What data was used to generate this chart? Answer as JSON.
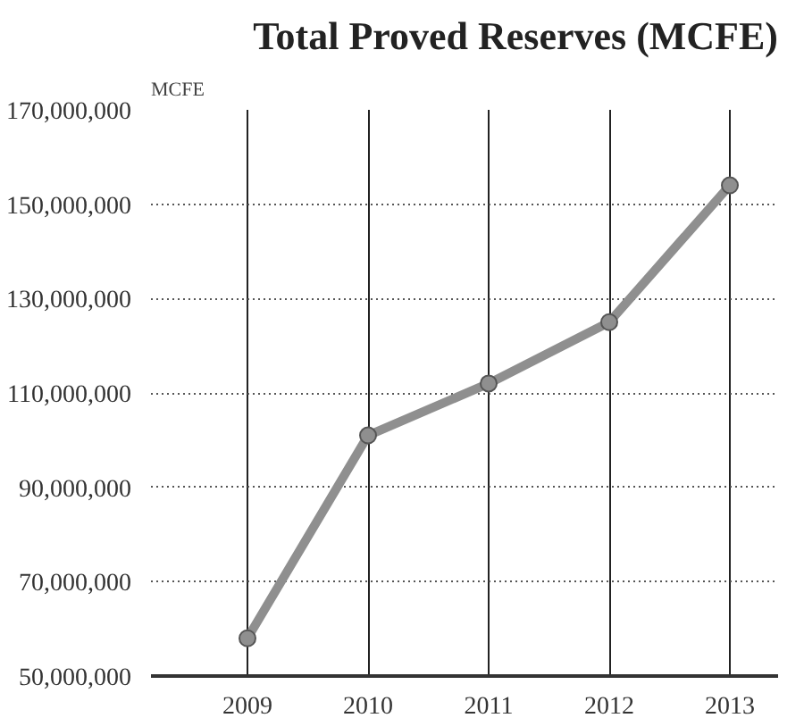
{
  "chart_data": {
    "type": "line",
    "title": "Total Proved Reserves (MCFE)",
    "ylabel": "MCFE",
    "categories": [
      "2009",
      "2010",
      "2011",
      "2012",
      "2013"
    ],
    "series": [
      {
        "color": "#8f8f8f",
        "values": [
          58000000,
          101000000,
          112000000,
          125000000,
          154000000
        ]
      }
    ],
    "ylim": [
      50000000,
      170000000
    ],
    "yticks": [
      {
        "value": 50000000,
        "label": "50,000,000"
      },
      {
        "value": 70000000,
        "label": "70,000,000"
      },
      {
        "value": 90000000,
        "label": "90,000,000"
      },
      {
        "value": 110000000,
        "label": "110,000,000"
      },
      {
        "value": 130000000,
        "label": "130,000,000"
      },
      {
        "value": 150000000,
        "label": "150,000,000"
      },
      {
        "value": 170000000,
        "label": "170,000,000"
      }
    ],
    "grid": true,
    "marker": "circle",
    "line_style": "solid"
  }
}
